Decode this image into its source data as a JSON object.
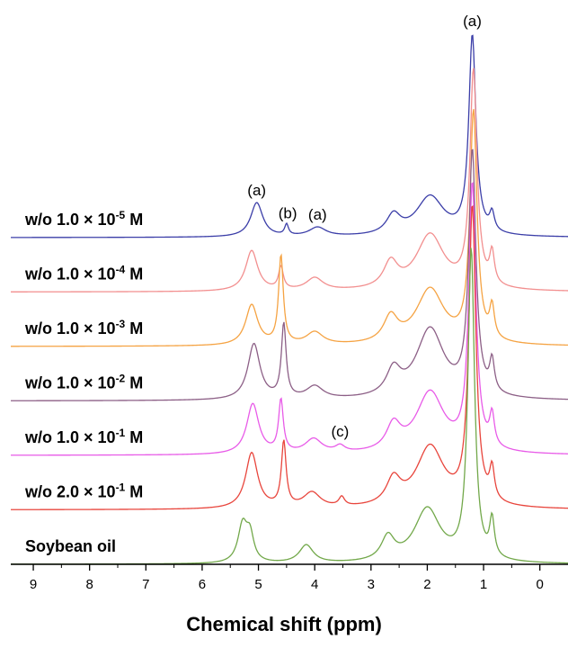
{
  "chart_data": {
    "type": "line",
    "title": "",
    "xlabel": "Chemical shift (ppm)",
    "ylabel": "",
    "x_reversed": true,
    "xlim": [
      9.4,
      -0.5
    ],
    "xticks": [
      9,
      8,
      7,
      6,
      5,
      4,
      3,
      2,
      1,
      0
    ],
    "grid": false,
    "series": [
      {
        "label": "w/o 1.0 × 10⁻⁵ M",
        "label_prefix": "w/o 1.0 × 10",
        "label_exp": "-5",
        "label_suffix": " M",
        "color": "#3b3ea8",
        "offset": 0,
        "peaks": [
          {
            "ppm": 5.03,
            "h": 0.38,
            "w": 0.13
          },
          {
            "ppm": 4.5,
            "h": 0.12,
            "w": 0.04
          },
          {
            "ppm": 3.95,
            "h": 0.1,
            "w": 0.18
          },
          {
            "ppm": 2.6,
            "h": 0.21,
            "w": 0.15
          },
          {
            "ppm": 1.95,
            "h": 0.44,
            "w": 0.3
          },
          {
            "ppm": 1.2,
            "h": 2.2,
            "w": 0.075
          },
          {
            "ppm": 0.85,
            "h": 0.2,
            "w": 0.05
          }
        ]
      },
      {
        "label": "w/o 1.0 × 10⁻⁴ M",
        "label_prefix": "w/o 1.0 × 10",
        "label_exp": "-4",
        "label_suffix": " M",
        "color": "#f28f8f",
        "offset": 1,
        "peaks": [
          {
            "ppm": 5.12,
            "h": 0.45,
            "w": 0.13
          },
          {
            "ppm": 4.6,
            "h": 0.25,
            "w": 0.05
          },
          {
            "ppm": 4.0,
            "h": 0.14,
            "w": 0.18
          },
          {
            "ppm": 2.65,
            "h": 0.28,
            "w": 0.15
          },
          {
            "ppm": 1.95,
            "h": 0.62,
            "w": 0.3
          },
          {
            "ppm": 1.18,
            "h": 2.4,
            "w": 0.075
          },
          {
            "ppm": 0.85,
            "h": 0.35,
            "w": 0.05
          }
        ]
      },
      {
        "label": "w/o 1.0 × 10⁻³ M",
        "label_prefix": "w/o 1.0 × 10",
        "label_exp": "-3",
        "label_suffix": " M",
        "color": "#f5a343",
        "offset": 2,
        "peaks": [
          {
            "ppm": 5.12,
            "h": 0.45,
            "w": 0.13
          },
          {
            "ppm": 4.6,
            "h": 0.98,
            "w": 0.05
          },
          {
            "ppm": 4.0,
            "h": 0.14,
            "w": 0.18
          },
          {
            "ppm": 2.65,
            "h": 0.28,
            "w": 0.15
          },
          {
            "ppm": 1.95,
            "h": 0.62,
            "w": 0.3
          },
          {
            "ppm": 1.18,
            "h": 2.55,
            "w": 0.075
          },
          {
            "ppm": 0.85,
            "h": 0.35,
            "w": 0.05
          }
        ]
      },
      {
        "label": "w/o 1.0 × 10⁻² M",
        "label_prefix": "w/o 1.0 × 10",
        "label_exp": "-2",
        "label_suffix": " M",
        "color": "#8c5f86",
        "offset": 3,
        "peaks": [
          {
            "ppm": 5.08,
            "h": 0.62,
            "w": 0.13
          },
          {
            "ppm": 4.55,
            "h": 0.82,
            "w": 0.05
          },
          {
            "ppm": 4.0,
            "h": 0.14,
            "w": 0.18
          },
          {
            "ppm": 2.6,
            "h": 0.28,
            "w": 0.15
          },
          {
            "ppm": 1.95,
            "h": 0.78,
            "w": 0.3
          },
          {
            "ppm": 1.2,
            "h": 2.7,
            "w": 0.075
          },
          {
            "ppm": 0.85,
            "h": 0.35,
            "w": 0.05
          }
        ]
      },
      {
        "label": "w/o 1.0 × 10⁻¹ M",
        "label_prefix": "w/o 1.0 × 10",
        "label_exp": "-1",
        "label_suffix": " M",
        "color": "#e85be8",
        "offset": 4,
        "peaks": [
          {
            "ppm": 5.1,
            "h": 0.56,
            "w": 0.13
          },
          {
            "ppm": 4.6,
            "h": 0.58,
            "w": 0.05
          },
          {
            "ppm": 4.02,
            "h": 0.16,
            "w": 0.18
          },
          {
            "ppm": 3.55,
            "h": 0.07,
            "w": 0.1
          },
          {
            "ppm": 2.6,
            "h": 0.28,
            "w": 0.15
          },
          {
            "ppm": 1.95,
            "h": 0.68,
            "w": 0.3
          },
          {
            "ppm": 1.2,
            "h": 2.95,
            "w": 0.075
          },
          {
            "ppm": 0.85,
            "h": 0.35,
            "w": 0.05
          }
        ]
      },
      {
        "label": "w/o 2.0 × 10⁻¹ M",
        "label_prefix": "w/o 2.0 × 10",
        "label_exp": "-1",
        "label_suffix": " M",
        "color": "#e8453c",
        "offset": 5,
        "peaks": [
          {
            "ppm": 5.12,
            "h": 0.62,
            "w": 0.13
          },
          {
            "ppm": 4.55,
            "h": 0.72,
            "w": 0.05
          },
          {
            "ppm": 4.05,
            "h": 0.17,
            "w": 0.18
          },
          {
            "ppm": 3.52,
            "h": 0.1,
            "w": 0.06
          },
          {
            "ppm": 2.6,
            "h": 0.28,
            "w": 0.15
          },
          {
            "ppm": 1.95,
            "h": 0.68,
            "w": 0.3
          },
          {
            "ppm": 1.2,
            "h": 3.3,
            "w": 0.075
          },
          {
            "ppm": 0.85,
            "h": 0.35,
            "w": 0.05
          }
        ]
      },
      {
        "label": "Soybean oil",
        "label_prefix": "Soybean oil",
        "label_exp": "",
        "label_suffix": "",
        "color": "#72a84a",
        "offset": 6,
        "peaks": [
          {
            "ppm": 5.28,
            "h": 0.42,
            "w": 0.1
          },
          {
            "ppm": 5.15,
            "h": 0.28,
            "w": 0.08
          },
          {
            "ppm": 4.15,
            "h": 0.2,
            "w": 0.15
          },
          {
            "ppm": 2.7,
            "h": 0.26,
            "w": 0.14
          },
          {
            "ppm": 2.0,
            "h": 0.6,
            "w": 0.28
          },
          {
            "ppm": 1.22,
            "h": 3.45,
            "w": 0.07
          },
          {
            "ppm": 0.85,
            "h": 0.42,
            "w": 0.05
          }
        ]
      }
    ],
    "annotations": [
      {
        "text": "(a)",
        "ppm": 1.2,
        "series": 0,
        "y_above": 8
      },
      {
        "text": "(a)",
        "ppm": 5.03,
        "series": 0,
        "y_above": 8
      },
      {
        "text": "(b)",
        "ppm": 4.48,
        "series": 0,
        "y_above": 8
      },
      {
        "text": "(a)",
        "ppm": 3.95,
        "series": 0,
        "y_above": 8
      },
      {
        "text": "(c)",
        "ppm": 3.55,
        "series": 4,
        "y_above": 8
      }
    ]
  }
}
